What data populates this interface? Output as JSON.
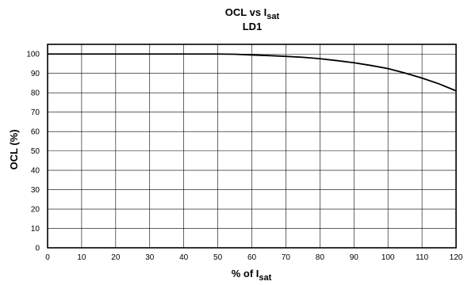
{
  "chart_data": {
    "type": "line",
    "title": {
      "main": "OCL vs I",
      "sub_script": "sat"
    },
    "subtitle": "LD1",
    "xlabel": {
      "main": "% of I",
      "sub_script": "sat"
    },
    "ylabel": "OCL (%)",
    "xlim": [
      0,
      120
    ],
    "ylim": [
      0,
      105
    ],
    "x_ticks": [
      0,
      10,
      20,
      30,
      40,
      50,
      60,
      70,
      80,
      90,
      100,
      110,
      120
    ],
    "y_ticks": [
      0,
      10,
      20,
      30,
      40,
      50,
      60,
      70,
      80,
      90,
      100
    ],
    "grid": true,
    "series": [
      {
        "x": [
          0,
          10,
          20,
          30,
          40,
          50,
          55,
          60,
          65,
          70,
          75,
          80,
          85,
          90,
          95,
          100,
          105,
          110,
          115,
          120
        ],
        "y": [
          100,
          100,
          100,
          100,
          100,
          100,
          99.9,
          99.5,
          99.2,
          98.8,
          98.3,
          97.6,
          96.6,
          95.5,
          94.1,
          92.5,
          90.2,
          87.6,
          84.6,
          81
        ]
      }
    ]
  }
}
